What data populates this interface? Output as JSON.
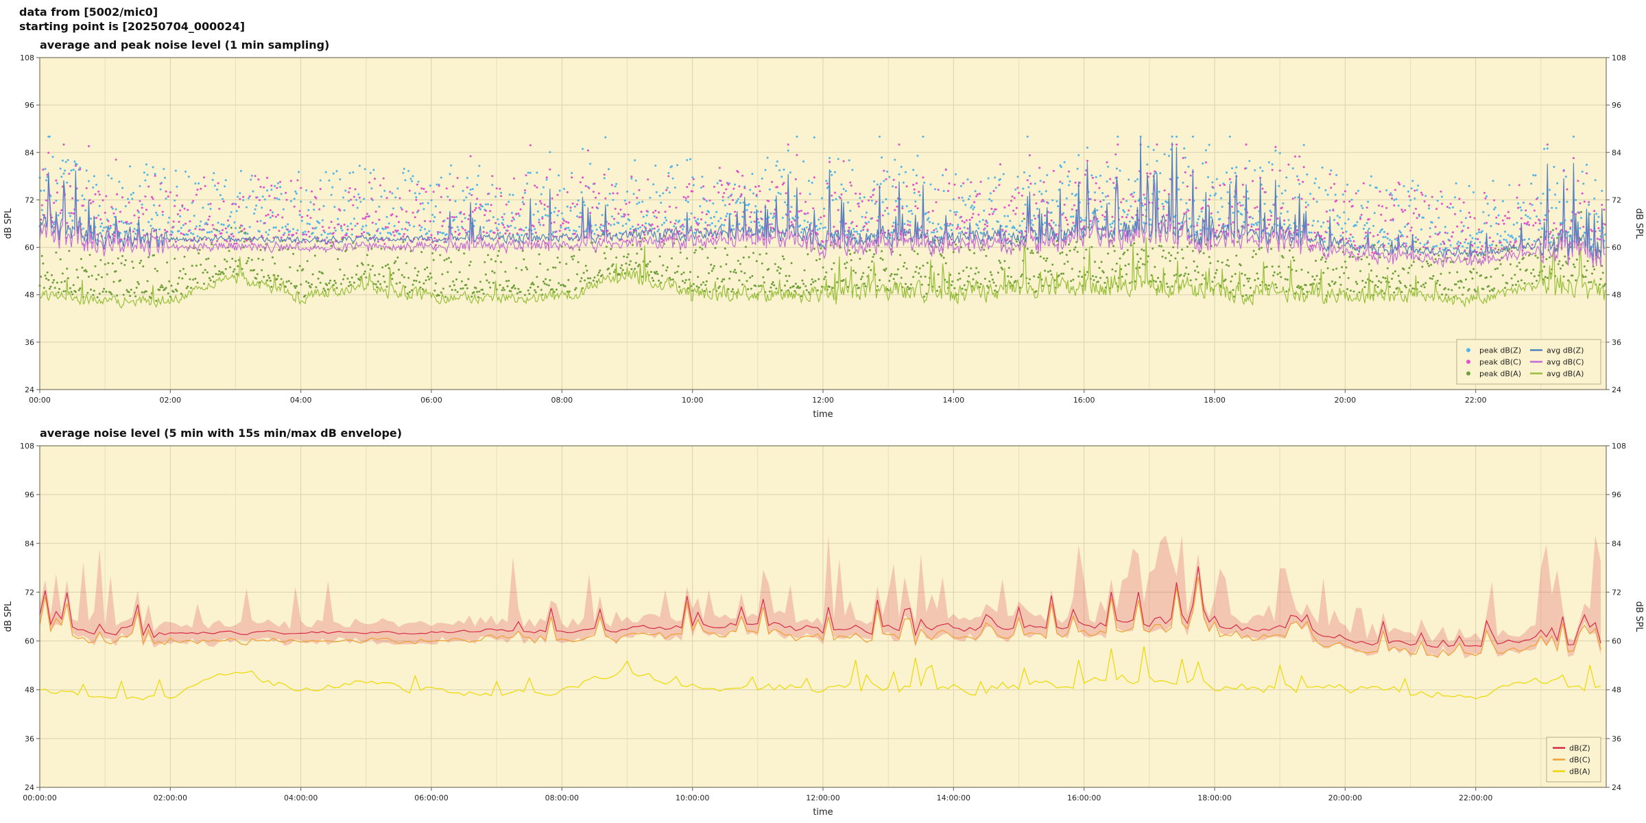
{
  "header": {
    "line1": "data from [5002/mic0]",
    "line2": "starting point is [20250704_000024]"
  },
  "chart_data": [
    {
      "type": "line",
      "title": "average and peak noise level (1 min sampling)",
      "xlabel": "time",
      "ylabel_left": "dB SPL",
      "ylabel_right": "dB SPL",
      "ylim": [
        24,
        108
      ],
      "yticks": [
        24,
        36,
        48,
        60,
        72,
        84,
        96,
        108
      ],
      "xlim_hours": [
        0,
        24
      ],
      "xtick_hours": [
        0,
        2,
        4,
        6,
        8,
        10,
        12,
        14,
        16,
        18,
        20,
        22
      ],
      "xtick_labels": [
        "00:00",
        "02:00",
        "04:00",
        "06:00",
        "08:00",
        "10:00",
        "12:00",
        "14:00",
        "16:00",
        "18:00",
        "20:00",
        "22:00"
      ],
      "sampling_minutes": 1,
      "grid": true,
      "legend_position": "lower right",
      "legend_columns": 2,
      "seed": 20250704,
      "colors": {
        "background": "#fbf3cf",
        "grid": "#d8d1ad",
        "frame": "#77745e"
      },
      "series": [
        {
          "name": "peak dB(Z)",
          "role": "peakZ",
          "style": "scatter",
          "color": "#53b4e8"
        },
        {
          "name": "peak dB(C)",
          "role": "peakC",
          "style": "scatter",
          "color": "#e052c8"
        },
        {
          "name": "peak dB(A)",
          "role": "peakA",
          "style": "scatter",
          "color": "#6fa03c"
        },
        {
          "name": "avg dB(Z)",
          "role": "avgZ",
          "style": "line",
          "color": "#4f81bd"
        },
        {
          "name": "avg dB(C)",
          "role": "avgC",
          "style": "line",
          "color": "#c46bd4"
        },
        {
          "name": "avg dB(A)",
          "role": "avgA",
          "style": "line",
          "color": "#97bf3a"
        }
      ],
      "anchors": {
        "avg_dBZ_hourly": [
          65.5,
          63,
          62,
          62,
          62,
          62,
          62.2,
          62.5,
          62.5,
          63,
          63.5,
          64,
          62.5,
          63,
          62.5,
          63,
          63.5,
          65,
          64,
          63,
          60.5,
          59,
          58.5,
          61,
          60
        ],
        "variability_dBZ": [
          3.0,
          2.2,
          0.7,
          0.7,
          0.7,
          0.7,
          0.9,
          1.1,
          1.1,
          1.4,
          1.6,
          1.8,
          2.0,
          2.0,
          1.8,
          2.0,
          2.6,
          2.8,
          2.0,
          1.8,
          1.2,
          1.0,
          1.0,
          2.8
        ],
        "spike_prob_dBZ": [
          0.1,
          0.07,
          0.02,
          0.02,
          0.02,
          0.02,
          0.03,
          0.05,
          0.05,
          0.06,
          0.08,
          0.09,
          0.1,
          0.12,
          0.1,
          0.12,
          0.18,
          0.18,
          0.12,
          0.1,
          0.05,
          0.03,
          0.04,
          0.2
        ],
        "spike_mag_dBZ": [
          12,
          10,
          6,
          6,
          6,
          6,
          7,
          12,
          9,
          9,
          10,
          11,
          14,
          12,
          11,
          12,
          19,
          19,
          12,
          11,
          8,
          7,
          8,
          19
        ],
        "avg_dBA_hourly": [
          48,
          46.5,
          46.5,
          53,
          47.5,
          50,
          47.5,
          47,
          47.5,
          53.5,
          48.5,
          48.5,
          48,
          49,
          48,
          49.5,
          50,
          50.5,
          49,
          48.5,
          48,
          47.5,
          46.5,
          51,
          48
        ],
        "variability_dBA": [
          1.2,
          1.2,
          1.0,
          1.6,
          1.2,
          1.6,
          1.2,
          1.2,
          1.5,
          1.8,
          1.8,
          1.8,
          2.0,
          2.2,
          2.2,
          2.2,
          2.4,
          2.4,
          2.2,
          2.0,
          1.8,
          1.5,
          1.2,
          2.6
        ],
        "spike_prob_dBA": [
          0.03,
          0.02,
          0.01,
          0.03,
          0.02,
          0.02,
          0.02,
          0.03,
          0.04,
          0.05,
          0.05,
          0.06,
          0.07,
          0.08,
          0.08,
          0.08,
          0.1,
          0.1,
          0.08,
          0.06,
          0.04,
          0.03,
          0.03,
          0.12
        ],
        "spike_mag_dBA": [
          6,
          5,
          4,
          5,
          5,
          5,
          5,
          6,
          7,
          8,
          8,
          8,
          9,
          10,
          9,
          10,
          12,
          12,
          10,
          8,
          7,
          6,
          6,
          16
        ]
      }
    },
    {
      "type": "line",
      "title": "average noise level (5 min with 15s min/max dB envelope)",
      "xlabel": "time",
      "ylabel_left": "dB SPL",
      "ylabel_right": "dB SPL",
      "ylim": [
        24,
        108
      ],
      "yticks": [
        24,
        36,
        48,
        60,
        72,
        84,
        96,
        108
      ],
      "xlim_hours": [
        0,
        24
      ],
      "xtick_hours": [
        0,
        2,
        4,
        6,
        8,
        10,
        12,
        14,
        16,
        18,
        20,
        22
      ],
      "xtick_labels": [
        "00:00:00",
        "02:00:00",
        "04:00:00",
        "06:00:00",
        "08:00:00",
        "10:00:00",
        "12:00:00",
        "14:00:00",
        "16:00:00",
        "18:00:00",
        "20:00:00",
        "22:00:00"
      ],
      "sampling_minutes": 5,
      "grid": true,
      "legend_position": "lower right",
      "legend_columns": 1,
      "seed": 724,
      "anchors_from": 0,
      "colors": {
        "background": "#fbf3cf",
        "grid": "#d8d1ad",
        "frame": "#77745e"
      },
      "series": [
        {
          "name": "dB(Z)",
          "role": "z5",
          "style": "line",
          "color": "#d62b47",
          "envelope": true,
          "envelope_color": "rgba(214,43,71,0.22)"
        },
        {
          "name": "dB(C)",
          "role": "c5",
          "style": "line",
          "color": "#f0a030"
        },
        {
          "name": "dB(A)",
          "role": "a5",
          "style": "line",
          "color": "#ecd800"
        }
      ]
    }
  ]
}
